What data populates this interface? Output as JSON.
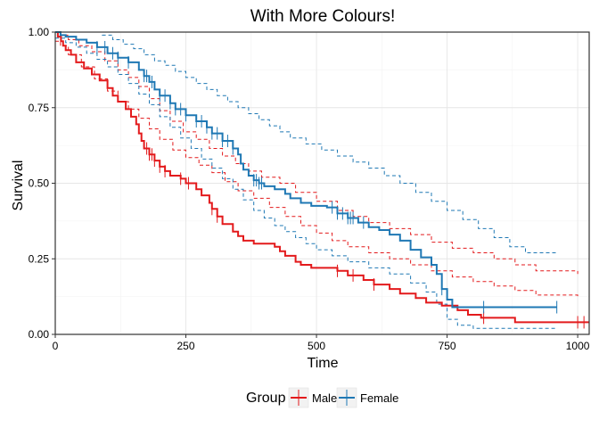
{
  "chart_data": {
    "type": "line",
    "subtype": "step",
    "title": "With More Colours!",
    "xlabel": "Time",
    "ylabel": "Survival",
    "xlim": [
      0,
      1022
    ],
    "ylim": [
      0,
      1
    ],
    "xticks": [
      0,
      250,
      500,
      750,
      1000
    ],
    "xtick_labels": [
      "0",
      "250",
      "500",
      "750",
      "1000"
    ],
    "yticks": [
      0,
      0.25,
      0.5,
      0.75,
      1.0
    ],
    "ytick_labels": [
      "0.00",
      "0.25",
      "0.50",
      "0.75",
      "1.00"
    ],
    "grid": true,
    "legend": {
      "title": "Group",
      "position": "bottom"
    },
    "series": [
      {
        "name": "Male",
        "color": "#e31a1c",
        "steps": [
          [
            0,
            1.0
          ],
          [
            5,
            0.985
          ],
          [
            11,
            0.97
          ],
          [
            15,
            0.955
          ],
          [
            20,
            0.94
          ],
          [
            30,
            0.925
          ],
          [
            40,
            0.9
          ],
          [
            55,
            0.88
          ],
          [
            70,
            0.86
          ],
          [
            85,
            0.84
          ],
          [
            100,
            0.815
          ],
          [
            110,
            0.79
          ],
          [
            120,
            0.77
          ],
          [
            135,
            0.745
          ],
          [
            145,
            0.72
          ],
          [
            155,
            0.695
          ],
          [
            160,
            0.665
          ],
          [
            165,
            0.64
          ],
          [
            170,
            0.615
          ],
          [
            180,
            0.595
          ],
          [
            190,
            0.575
          ],
          [
            200,
            0.555
          ],
          [
            210,
            0.54
          ],
          [
            220,
            0.525
          ],
          [
            240,
            0.515
          ],
          [
            250,
            0.5
          ],
          [
            270,
            0.48
          ],
          [
            280,
            0.46
          ],
          [
            295,
            0.435
          ],
          [
            300,
            0.415
          ],
          [
            310,
            0.39
          ],
          [
            320,
            0.365
          ],
          [
            340,
            0.34
          ],
          [
            350,
            0.325
          ],
          [
            360,
            0.31
          ],
          [
            380,
            0.3
          ],
          [
            400,
            0.3
          ],
          [
            420,
            0.29
          ],
          [
            430,
            0.275
          ],
          [
            440,
            0.26
          ],
          [
            460,
            0.24
          ],
          [
            470,
            0.23
          ],
          [
            490,
            0.22
          ],
          [
            540,
            0.21
          ],
          [
            560,
            0.195
          ],
          [
            590,
            0.18
          ],
          [
            610,
            0.165
          ],
          [
            640,
            0.15
          ],
          [
            660,
            0.135
          ],
          [
            690,
            0.12
          ],
          [
            710,
            0.105
          ],
          [
            740,
            0.095
          ],
          [
            770,
            0.08
          ],
          [
            790,
            0.065
          ],
          [
            815,
            0.055
          ],
          [
            880,
            0.04
          ],
          [
            1022,
            0.04
          ]
        ],
        "upper": [
          [
            0,
            1.0
          ],
          [
            10,
            0.99
          ],
          [
            25,
            0.975
          ],
          [
            45,
            0.955
          ],
          [
            70,
            0.935
          ],
          [
            95,
            0.905
          ],
          [
            120,
            0.875
          ],
          [
            140,
            0.85
          ],
          [
            160,
            0.82
          ],
          [
            180,
            0.78
          ],
          [
            200,
            0.74
          ],
          [
            220,
            0.705
          ],
          [
            245,
            0.67
          ],
          [
            270,
            0.645
          ],
          [
            295,
            0.615
          ],
          [
            320,
            0.59
          ],
          [
            345,
            0.565
          ],
          [
            370,
            0.54
          ],
          [
            395,
            0.52
          ],
          [
            430,
            0.5
          ],
          [
            460,
            0.47
          ],
          [
            500,
            0.44
          ],
          [
            540,
            0.41
          ],
          [
            570,
            0.39
          ],
          [
            600,
            0.37
          ],
          [
            640,
            0.35
          ],
          [
            680,
            0.33
          ],
          [
            720,
            0.305
          ],
          [
            760,
            0.285
          ],
          [
            800,
            0.27
          ],
          [
            840,
            0.25
          ],
          [
            880,
            0.23
          ],
          [
            920,
            0.21
          ],
          [
            1000,
            0.2
          ]
        ],
        "lower": [
          [
            0,
            0.97
          ],
          [
            10,
            0.955
          ],
          [
            25,
            0.925
          ],
          [
            50,
            0.885
          ],
          [
            75,
            0.845
          ],
          [
            100,
            0.805
          ],
          [
            120,
            0.77
          ],
          [
            140,
            0.745
          ],
          [
            160,
            0.715
          ],
          [
            180,
            0.68
          ],
          [
            200,
            0.645
          ],
          [
            225,
            0.61
          ],
          [
            250,
            0.585
          ],
          [
            275,
            0.56
          ],
          [
            300,
            0.535
          ],
          [
            325,
            0.505
          ],
          [
            350,
            0.475
          ],
          [
            380,
            0.45
          ],
          [
            410,
            0.42
          ],
          [
            440,
            0.39
          ],
          [
            470,
            0.36
          ],
          [
            500,
            0.335
          ],
          [
            530,
            0.31
          ],
          [
            560,
            0.29
          ],
          [
            600,
            0.27
          ],
          [
            640,
            0.25
          ],
          [
            680,
            0.23
          ],
          [
            720,
            0.21
          ],
          [
            760,
            0.19
          ],
          [
            800,
            0.175
          ],
          [
            840,
            0.16
          ],
          [
            880,
            0.145
          ],
          [
            920,
            0.13
          ],
          [
            1000,
            0.12
          ]
        ],
        "censor_x": [
          175,
          180,
          185,
          190,
          200,
          210,
          240,
          255,
          300,
          310,
          540,
          570,
          610,
          820,
          1000,
          1012
        ]
      },
      {
        "name": "Female",
        "color": "#1f78b4",
        "steps": [
          [
            0,
            1.0
          ],
          [
            10,
            0.99
          ],
          [
            20,
            0.985
          ],
          [
            40,
            0.975
          ],
          [
            60,
            0.965
          ],
          [
            80,
            0.95
          ],
          [
            100,
            0.93
          ],
          [
            120,
            0.915
          ],
          [
            140,
            0.9
          ],
          [
            160,
            0.875
          ],
          [
            170,
            0.855
          ],
          [
            180,
            0.835
          ],
          [
            190,
            0.81
          ],
          [
            200,
            0.79
          ],
          [
            220,
            0.765
          ],
          [
            230,
            0.745
          ],
          [
            250,
            0.725
          ],
          [
            270,
            0.705
          ],
          [
            290,
            0.685
          ],
          [
            300,
            0.665
          ],
          [
            320,
            0.64
          ],
          [
            340,
            0.615
          ],
          [
            350,
            0.595
          ],
          [
            355,
            0.565
          ],
          [
            360,
            0.545
          ],
          [
            370,
            0.525
          ],
          [
            380,
            0.51
          ],
          [
            390,
            0.5
          ],
          [
            400,
            0.49
          ],
          [
            420,
            0.48
          ],
          [
            440,
            0.465
          ],
          [
            450,
            0.45
          ],
          [
            470,
            0.435
          ],
          [
            490,
            0.425
          ],
          [
            520,
            0.42
          ],
          [
            540,
            0.4
          ],
          [
            560,
            0.385
          ],
          [
            580,
            0.37
          ],
          [
            600,
            0.355
          ],
          [
            620,
            0.345
          ],
          [
            640,
            0.33
          ],
          [
            660,
            0.31
          ],
          [
            680,
            0.28
          ],
          [
            700,
            0.255
          ],
          [
            720,
            0.23
          ],
          [
            730,
            0.2
          ],
          [
            740,
            0.15
          ],
          [
            750,
            0.115
          ],
          [
            760,
            0.09
          ],
          [
            790,
            0.09
          ],
          [
            960,
            0.09
          ]
        ],
        "upper": [
          [
            0,
            1.0
          ],
          [
            20,
            1.0
          ],
          [
            60,
            1.0
          ],
          [
            90,
            0.99
          ],
          [
            110,
            0.975
          ],
          [
            130,
            0.96
          ],
          [
            150,
            0.945
          ],
          [
            170,
            0.925
          ],
          [
            190,
            0.905
          ],
          [
            210,
            0.89
          ],
          [
            230,
            0.87
          ],
          [
            250,
            0.85
          ],
          [
            270,
            0.83
          ],
          [
            290,
            0.81
          ],
          [
            310,
            0.79
          ],
          [
            330,
            0.77
          ],
          [
            350,
            0.75
          ],
          [
            370,
            0.73
          ],
          [
            390,
            0.71
          ],
          [
            410,
            0.69
          ],
          [
            430,
            0.67
          ],
          [
            450,
            0.65
          ],
          [
            480,
            0.63
          ],
          [
            510,
            0.61
          ],
          [
            540,
            0.59
          ],
          [
            570,
            0.57
          ],
          [
            600,
            0.55
          ],
          [
            630,
            0.525
          ],
          [
            660,
            0.5
          ],
          [
            690,
            0.47
          ],
          [
            720,
            0.44
          ],
          [
            750,
            0.41
          ],
          [
            780,
            0.38
          ],
          [
            810,
            0.35
          ],
          [
            840,
            0.32
          ],
          [
            870,
            0.29
          ],
          [
            900,
            0.27
          ],
          [
            960,
            0.27
          ]
        ],
        "lower": [
          [
            0,
            0.98
          ],
          [
            20,
            0.965
          ],
          [
            40,
            0.95
          ],
          [
            60,
            0.93
          ],
          [
            80,
            0.91
          ],
          [
            100,
            0.885
          ],
          [
            120,
            0.86
          ],
          [
            140,
            0.83
          ],
          [
            160,
            0.795
          ],
          [
            180,
            0.76
          ],
          [
            200,
            0.72
          ],
          [
            220,
            0.685
          ],
          [
            240,
            0.65
          ],
          [
            260,
            0.615
          ],
          [
            280,
            0.58
          ],
          [
            300,
            0.55
          ],
          [
            320,
            0.515
          ],
          [
            340,
            0.48
          ],
          [
            360,
            0.445
          ],
          [
            380,
            0.41
          ],
          [
            400,
            0.385
          ],
          [
            420,
            0.36
          ],
          [
            440,
            0.34
          ],
          [
            460,
            0.32
          ],
          [
            480,
            0.3
          ],
          [
            500,
            0.28
          ],
          [
            530,
            0.26
          ],
          [
            560,
            0.24
          ],
          [
            600,
            0.22
          ],
          [
            640,
            0.2
          ],
          [
            680,
            0.17
          ],
          [
            710,
            0.14
          ],
          [
            730,
            0.1
          ],
          [
            750,
            0.05
          ],
          [
            770,
            0.03
          ],
          [
            800,
            0.02
          ],
          [
            960,
            0.02
          ]
        ],
        "censor_x": [
          80,
          95,
          110,
          120,
          140,
          170,
          175,
          185,
          200,
          210,
          220,
          230,
          240,
          250,
          270,
          280,
          290,
          300,
          310,
          320,
          330,
          340,
          380,
          385,
          390,
          395,
          530,
          540,
          550,
          560,
          565,
          570,
          590,
          740,
          820,
          960
        ]
      }
    ]
  }
}
